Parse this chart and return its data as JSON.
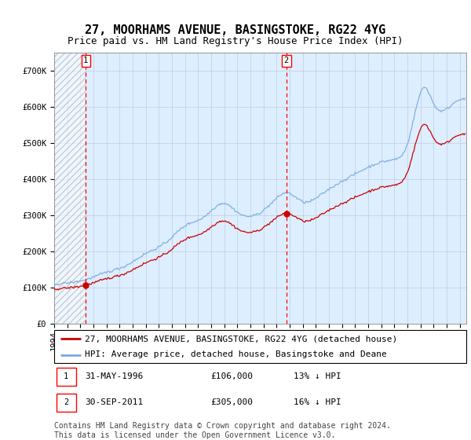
{
  "title": "27, MOORHAMS AVENUE, BASINGSTOKE, RG22 4YG",
  "subtitle": "Price paid vs. HM Land Registry's House Price Index (HPI)",
  "legend_line1": "27, MOORHAMS AVENUE, BASINGSTOKE, RG22 4YG (detached house)",
  "legend_line2": "HPI: Average price, detached house, Basingstoke and Deane",
  "footnote": "Contains HM Land Registry data © Crown copyright and database right 2024.\nThis data is licensed under the Open Government Licence v3.0.",
  "sale1_date": "31-MAY-1996",
  "sale1_price": 106000,
  "sale1_note": "13% ↓ HPI",
  "sale2_date": "30-SEP-2011",
  "sale2_price": 305000,
  "sale2_note": "16% ↓ HPI",
  "sale1_x": 1996.42,
  "sale2_x": 2011.75,
  "ylim_max": 750000,
  "ylim_min": 0,
  "xlim_min": 1994.0,
  "xlim_max": 2025.5,
  "red_line_color": "#cc0000",
  "blue_line_color": "#7aaadd",
  "bg_color": "#ddeeff",
  "grid_color": "#c0cce0",
  "title_fontsize": 11,
  "subtitle_fontsize": 9,
  "tick_fontsize": 7.5,
  "legend_fontsize": 8,
  "footnote_fontsize": 7
}
